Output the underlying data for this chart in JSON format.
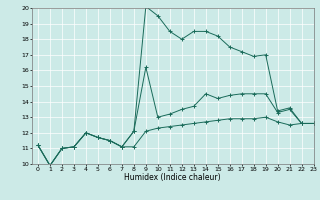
{
  "xlabel": "Humidex (Indice chaleur)",
  "bg_color": "#cceae7",
  "line_color": "#1a6b5a",
  "grid_color": "#ffffff",
  "xlim": [
    -0.5,
    23
  ],
  "ylim": [
    10,
    20
  ],
  "yticks": [
    10,
    11,
    12,
    13,
    14,
    15,
    16,
    17,
    18,
    19,
    20
  ],
  "xticks": [
    0,
    1,
    2,
    3,
    4,
    5,
    6,
    7,
    8,
    9,
    10,
    11,
    12,
    13,
    14,
    15,
    16,
    17,
    18,
    19,
    20,
    21,
    22,
    23
  ],
  "lines": [
    {
      "x": [
        0,
        1,
        2,
        3,
        4,
        5,
        6,
        7,
        8,
        9,
        10,
        11,
        12,
        13,
        14,
        15,
        16,
        17,
        18,
        19,
        20,
        21,
        22,
        23
      ],
      "y": [
        11.2,
        9.9,
        11.0,
        11.1,
        12.0,
        11.7,
        11.5,
        11.1,
        12.1,
        20.1,
        19.5,
        18.5,
        18.0,
        18.5,
        18.5,
        18.2,
        17.5,
        17.2,
        16.9,
        17.0,
        13.4,
        13.6,
        12.6,
        12.6
      ]
    },
    {
      "x": [
        0,
        1,
        2,
        3,
        4,
        5,
        6,
        7,
        8,
        9,
        10,
        11,
        12,
        13,
        14,
        15,
        16,
        17,
        18,
        19,
        20,
        21,
        22,
        23
      ],
      "y": [
        11.2,
        9.9,
        11.0,
        11.1,
        12.0,
        11.7,
        11.5,
        11.1,
        12.1,
        16.2,
        13.0,
        13.2,
        13.5,
        13.7,
        14.5,
        14.2,
        14.4,
        14.5,
        14.5,
        14.5,
        13.3,
        13.5,
        12.6,
        12.6
      ]
    },
    {
      "x": [
        0,
        1,
        2,
        3,
        4,
        5,
        6,
        7,
        8,
        9,
        10,
        11,
        12,
        13,
        14,
        15,
        16,
        17,
        18,
        19,
        20,
        21,
        22,
        23
      ],
      "y": [
        11.2,
        9.9,
        11.0,
        11.1,
        12.0,
        11.7,
        11.5,
        11.1,
        11.1,
        12.1,
        12.3,
        12.4,
        12.5,
        12.6,
        12.7,
        12.8,
        12.9,
        12.9,
        12.9,
        13.0,
        12.7,
        12.5,
        12.6,
        12.6
      ]
    }
  ]
}
